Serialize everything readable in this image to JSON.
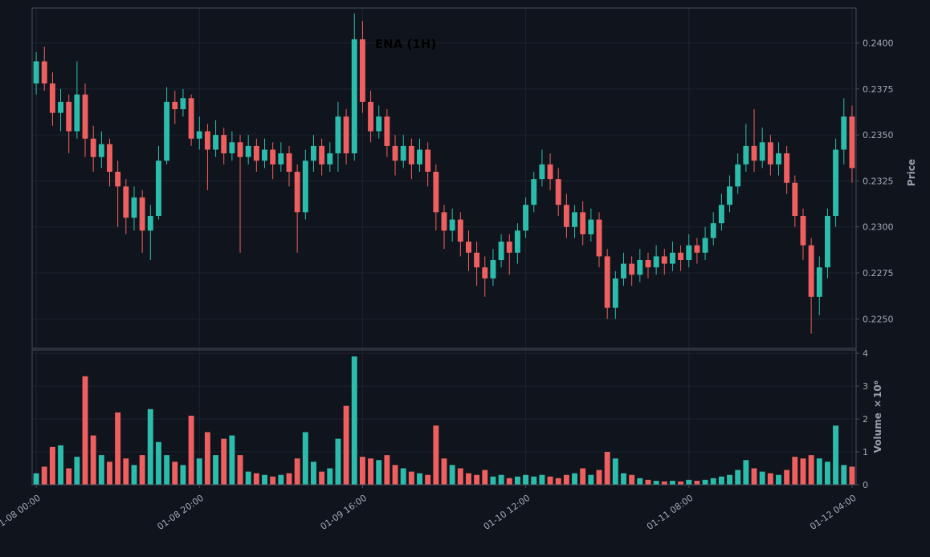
{
  "title": "ENA (1H)",
  "colors": {
    "background": "#10141d",
    "up": "#2cbcab",
    "down": "#ee5f5f",
    "grid": "#1d2330",
    "border": "#464c5a",
    "tick_text": "#a4a9b4",
    "axis_label_text": "#98a0ae",
    "title_text": "#000000"
  },
  "chart_data": {
    "type": "candlestick_with_volume",
    "symbol": "ENA",
    "interval": "1H",
    "title": "ENA (1H)",
    "legend_position": "none",
    "grid": true,
    "x_ticks": [
      {
        "index": 0,
        "label": "01-08 00:00"
      },
      {
        "index": 20,
        "label": "01-08 20:00"
      },
      {
        "index": 40,
        "label": "01-09 16:00"
      },
      {
        "index": 60,
        "label": "01-10 12:00"
      },
      {
        "index": 80,
        "label": "01-11 08:00"
      },
      {
        "index": 100,
        "label": "01-12 04:00"
      }
    ],
    "price_axis": {
      "label": "Price",
      "side": "right",
      "ticks": [
        0.225,
        0.2275,
        0.23,
        0.2325,
        0.235,
        0.2375,
        0.24
      ],
      "ylim": [
        0.2234,
        0.2419
      ]
    },
    "volume_axis": {
      "label": "Volume",
      "multiplier": "×10⁶",
      "label_full": "Volume ×10⁶",
      "side": "right",
      "ticks": [
        0,
        1,
        2,
        3,
        4
      ],
      "ylim": [
        0,
        4.1
      ]
    },
    "candles": {
      "open": [
        0.2378,
        0.239,
        0.2378,
        0.2362,
        0.2368,
        0.2352,
        0.2372,
        0.2348,
        0.2338,
        0.2345,
        0.233,
        0.2322,
        0.2305,
        0.2316,
        0.2298,
        0.2306,
        0.2336,
        0.2368,
        0.2364,
        0.237,
        0.2348,
        0.2352,
        0.2342,
        0.235,
        0.234,
        0.2346,
        0.2338,
        0.2344,
        0.2336,
        0.2342,
        0.2334,
        0.234,
        0.233,
        0.2308,
        0.2336,
        0.2344,
        0.2334,
        0.234,
        0.236,
        0.234,
        0.2402,
        0.2368,
        0.2352,
        0.236,
        0.2344,
        0.2336,
        0.2344,
        0.2334,
        0.2342,
        0.233,
        0.2308,
        0.2298,
        0.2304,
        0.2292,
        0.2286,
        0.2278,
        0.2272,
        0.2282,
        0.2292,
        0.2286,
        0.2298,
        0.2312,
        0.2326,
        0.2334,
        0.2326,
        0.2312,
        0.23,
        0.2308,
        0.2296,
        0.2304,
        0.2284,
        0.2256,
        0.2272,
        0.228,
        0.2274,
        0.2282,
        0.2278,
        0.2284,
        0.228,
        0.2286,
        0.2282,
        0.229,
        0.2286,
        0.2294,
        0.2302,
        0.2312,
        0.2322,
        0.2334,
        0.2344,
        0.2336,
        0.2346,
        0.2334,
        0.234,
        0.2324,
        0.2306,
        0.229,
        0.2262,
        0.2278,
        0.2306,
        0.2342,
        0.236
      ],
      "high": [
        0.2395,
        0.2398,
        0.2384,
        0.2375,
        0.2372,
        0.239,
        0.2378,
        0.2355,
        0.2352,
        0.2348,
        0.2336,
        0.2326,
        0.2322,
        0.232,
        0.2312,
        0.2344,
        0.2376,
        0.2374,
        0.2375,
        0.2372,
        0.236,
        0.2356,
        0.2358,
        0.2354,
        0.2352,
        0.235,
        0.235,
        0.2348,
        0.2348,
        0.2346,
        0.2346,
        0.2344,
        0.2334,
        0.2342,
        0.235,
        0.2348,
        0.2346,
        0.2368,
        0.2364,
        0.2416,
        0.2412,
        0.2374,
        0.2366,
        0.2364,
        0.235,
        0.235,
        0.2348,
        0.2348,
        0.2346,
        0.2334,
        0.2312,
        0.231,
        0.2308,
        0.2298,
        0.2292,
        0.2284,
        0.2288,
        0.2296,
        0.2296,
        0.2302,
        0.2316,
        0.233,
        0.2342,
        0.234,
        0.2332,
        0.2318,
        0.2312,
        0.2314,
        0.231,
        0.2308,
        0.2288,
        0.2276,
        0.2286,
        0.2284,
        0.2288,
        0.2286,
        0.229,
        0.2288,
        0.2292,
        0.229,
        0.2296,
        0.2294,
        0.23,
        0.2308,
        0.2318,
        0.2328,
        0.234,
        0.2356,
        0.2364,
        0.2354,
        0.235,
        0.2346,
        0.2344,
        0.2328,
        0.231,
        0.2294,
        0.2284,
        0.231,
        0.2348,
        0.237,
        0.2366
      ],
      "low": [
        0.2372,
        0.2374,
        0.2355,
        0.2352,
        0.234,
        0.2348,
        0.2338,
        0.233,
        0.2332,
        0.2322,
        0.23,
        0.2296,
        0.2298,
        0.2286,
        0.2282,
        0.2304,
        0.2334,
        0.2356,
        0.236,
        0.2344,
        0.2342,
        0.232,
        0.2338,
        0.2334,
        0.2336,
        0.2286,
        0.2334,
        0.233,
        0.2332,
        0.2326,
        0.233,
        0.2322,
        0.2286,
        0.2304,
        0.233,
        0.2328,
        0.233,
        0.233,
        0.2334,
        0.2336,
        0.2362,
        0.2346,
        0.2348,
        0.2338,
        0.2328,
        0.2332,
        0.2326,
        0.233,
        0.2322,
        0.2298,
        0.2288,
        0.2292,
        0.2284,
        0.2276,
        0.2268,
        0.2262,
        0.2268,
        0.2278,
        0.2274,
        0.228,
        0.2294,
        0.2308,
        0.2322,
        0.232,
        0.2306,
        0.2294,
        0.2294,
        0.229,
        0.2292,
        0.2278,
        0.225,
        0.225,
        0.2268,
        0.2268,
        0.227,
        0.2272,
        0.2274,
        0.2274,
        0.2276,
        0.2276,
        0.2278,
        0.228,
        0.2282,
        0.229,
        0.2298,
        0.2308,
        0.2318,
        0.233,
        0.233,
        0.2332,
        0.2328,
        0.2328,
        0.2318,
        0.23,
        0.2282,
        0.2242,
        0.2252,
        0.2272,
        0.23,
        0.2334,
        0.2324
      ],
      "close": [
        0.239,
        0.2378,
        0.2362,
        0.2368,
        0.2352,
        0.2372,
        0.2348,
        0.2338,
        0.2345,
        0.233,
        0.2322,
        0.2305,
        0.2316,
        0.2298,
        0.2306,
        0.2336,
        0.2368,
        0.2364,
        0.237,
        0.2348,
        0.2352,
        0.2342,
        0.235,
        0.234,
        0.2346,
        0.2338,
        0.2344,
        0.2336,
        0.2342,
        0.2334,
        0.234,
        0.233,
        0.2308,
        0.2336,
        0.2344,
        0.2334,
        0.234,
        0.236,
        0.234,
        0.2402,
        0.2368,
        0.2352,
        0.236,
        0.2344,
        0.2336,
        0.2344,
        0.2334,
        0.2342,
        0.233,
        0.2308,
        0.2298,
        0.2304,
        0.2292,
        0.2286,
        0.2278,
        0.2272,
        0.2282,
        0.2292,
        0.2286,
        0.2298,
        0.2312,
        0.2326,
        0.2334,
        0.2326,
        0.2312,
        0.23,
        0.2308,
        0.2296,
        0.2304,
        0.2284,
        0.2256,
        0.2272,
        0.228,
        0.2274,
        0.2282,
        0.2278,
        0.2284,
        0.228,
        0.2286,
        0.2282,
        0.229,
        0.2286,
        0.2294,
        0.2302,
        0.2312,
        0.2322,
        0.2334,
        0.2344,
        0.2336,
        0.2346,
        0.2334,
        0.234,
        0.2324,
        0.2306,
        0.229,
        0.2262,
        0.2278,
        0.2306,
        0.2342,
        0.236,
        0.2332
      ],
      "volume_millions": [
        0.35,
        0.55,
        1.15,
        1.2,
        0.5,
        0.85,
        3.3,
        1.5,
        0.9,
        0.7,
        2.2,
        0.8,
        0.6,
        0.9,
        2.3,
        1.3,
        0.9,
        0.7,
        0.6,
        2.1,
        0.8,
        1.6,
        0.9,
        1.4,
        1.5,
        0.9,
        0.4,
        0.35,
        0.3,
        0.25,
        0.3,
        0.35,
        0.8,
        1.6,
        0.7,
        0.4,
        0.5,
        1.4,
        2.4,
        3.9,
        0.85,
        0.8,
        0.75,
        0.9,
        0.6,
        0.5,
        0.4,
        0.35,
        0.3,
        1.8,
        0.8,
        0.6,
        0.5,
        0.35,
        0.3,
        0.45,
        0.25,
        0.3,
        0.2,
        0.25,
        0.3,
        0.25,
        0.3,
        0.25,
        0.2,
        0.3,
        0.35,
        0.5,
        0.3,
        0.45,
        1.0,
        0.8,
        0.35,
        0.3,
        0.2,
        0.15,
        0.12,
        0.1,
        0.12,
        0.1,
        0.15,
        0.12,
        0.15,
        0.2,
        0.25,
        0.3,
        0.45,
        0.75,
        0.5,
        0.4,
        0.35,
        0.3,
        0.45,
        0.85,
        0.8,
        0.9,
        0.8,
        0.7,
        1.8,
        0.6,
        0.55
      ]
    }
  }
}
